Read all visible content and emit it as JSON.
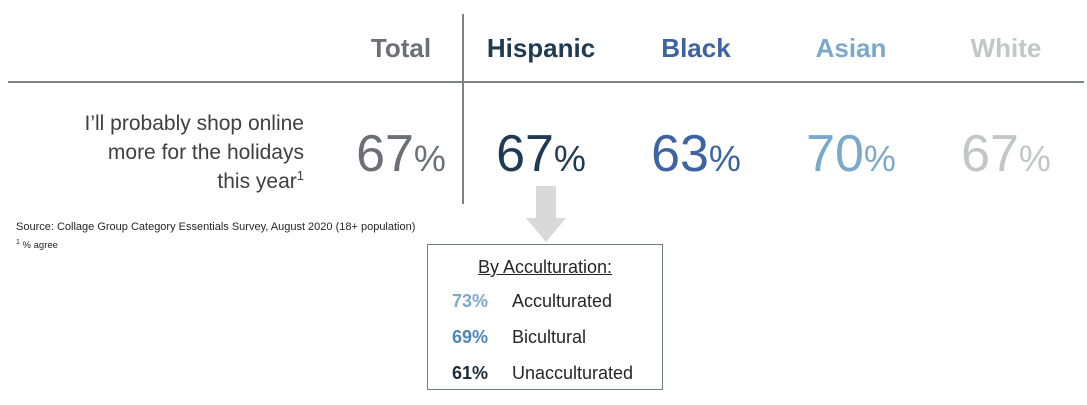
{
  "chart_data": {
    "type": "table",
    "columns": [
      "Total",
      "Hispanic",
      "Black",
      "Asian",
      "White"
    ],
    "column_colors": [
      "#6b7077",
      "#1f3a53",
      "#3e63a4",
      "#7ba9c9",
      "#c3c5c7"
    ],
    "rows": [
      {
        "label_lines": [
          "I’ll probably shop online",
          "more for the holidays",
          "this year"
        ],
        "label_footnote_marker": "1",
        "values": [
          67,
          67,
          63,
          70,
          67
        ],
        "unit": "%"
      }
    ]
  },
  "source": "Source: Collage Group Category Essentials Survey, August 2020 (18+ population)",
  "footnote": {
    "marker": "1",
    "text": " % agree"
  },
  "acculturation": {
    "title": "By Acculturation:",
    "items": [
      {
        "pct": "73%",
        "label": "Acculturated",
        "color": "#7ba9c9"
      },
      {
        "pct": "69%",
        "label": "Bicultural",
        "color": "#4f87b3"
      },
      {
        "pct": "61%",
        "label": "Unacculturated",
        "color": "#1b2a38"
      }
    ]
  }
}
